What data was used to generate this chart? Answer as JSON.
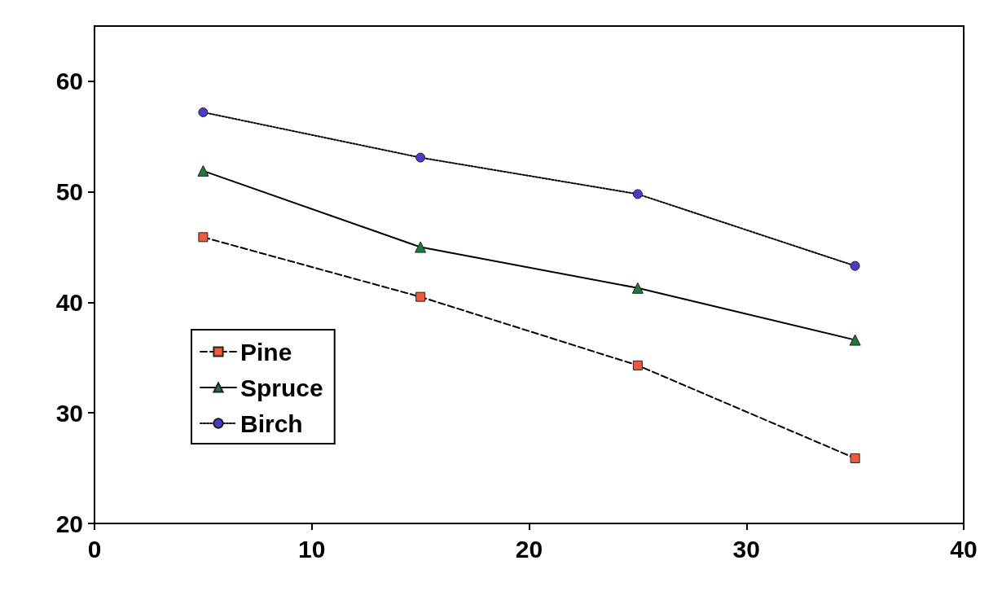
{
  "chart_data": {
    "type": "line",
    "x": [
      5,
      15,
      25,
      35
    ],
    "series": [
      {
        "name": "Pine",
        "color": "#f05a3c",
        "values": [
          45.9,
          40.5,
          34.3,
          25.9
        ],
        "marker": "square",
        "line_style": "dashed"
      },
      {
        "name": "Spruce",
        "color": "#1e7a3c",
        "values": [
          51.9,
          45.0,
          41.3,
          36.6
        ],
        "marker": "triangle",
        "line_style": "solid"
      },
      {
        "name": "Birch",
        "color": "#4a3cc8",
        "values": [
          57.2,
          53.1,
          49.8,
          43.3
        ],
        "marker": "circle",
        "line_style": "dotted"
      }
    ],
    "xlim": [
      0,
      40
    ],
    "xticks": [
      0,
      10,
      20,
      30,
      40
    ],
    "ylim": [
      20,
      65
    ],
    "yticks": [
      20,
      30,
      40,
      50,
      60
    ],
    "grid": false,
    "legend": "bottom left"
  }
}
